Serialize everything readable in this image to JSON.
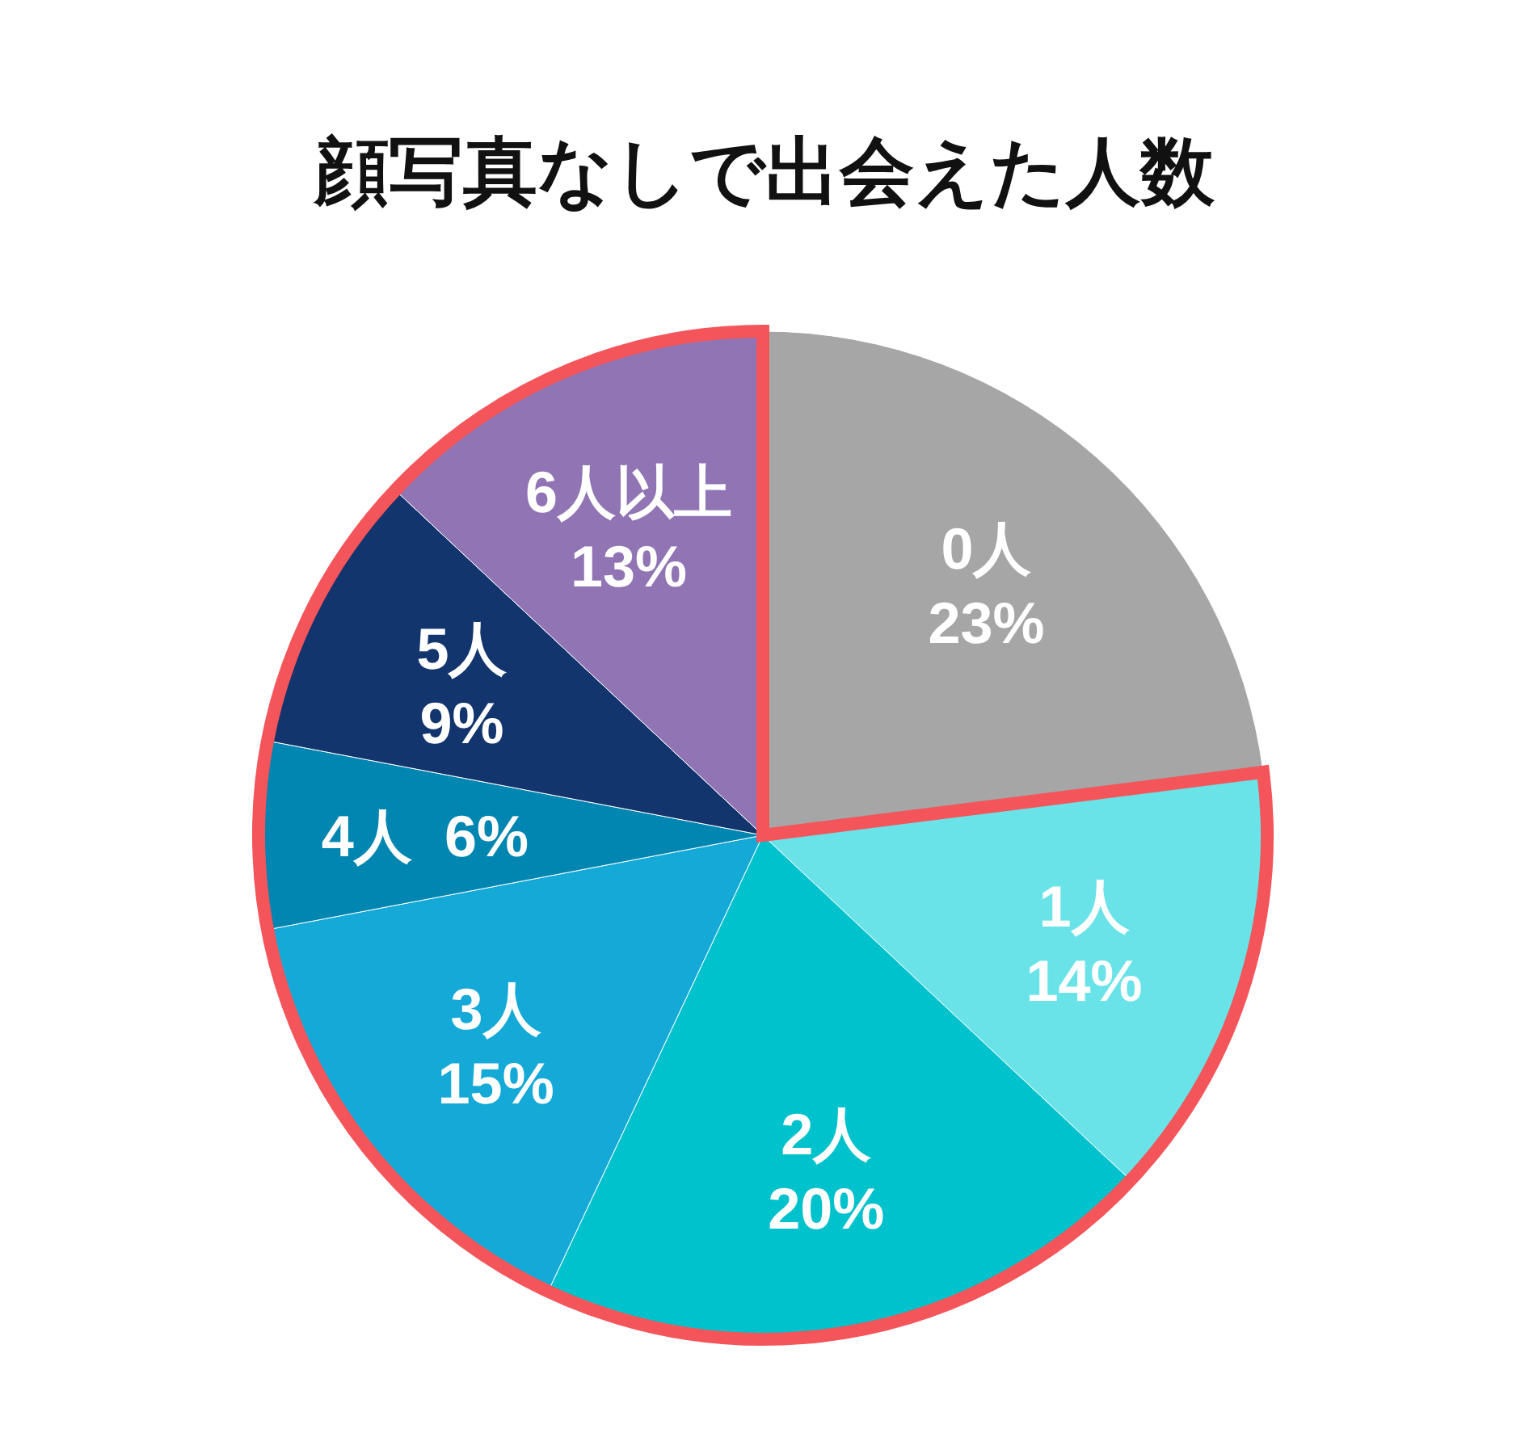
{
  "chart_data": {
    "type": "pie",
    "title": "顔写真なしで出会えた人数",
    "categories": [
      "0人",
      "1人",
      "2人",
      "3人",
      "4人",
      "5人",
      "6人以上"
    ],
    "values": [
      23,
      14,
      20,
      15,
      6,
      9,
      13
    ],
    "value_labels": [
      "23%",
      "14%",
      "20%",
      "15%",
      "6%",
      "9%",
      "13%"
    ],
    "colors": [
      "#a6a6a6",
      "#6ae3e8",
      "#00c2cc",
      "#14a9d6",
      "#0086b0",
      "#12356e",
      "#9074b4"
    ]
  }
}
